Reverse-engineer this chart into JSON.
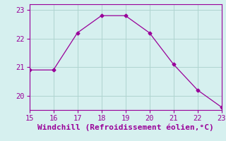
{
  "x": [
    15,
    16,
    17,
    18,
    19,
    20,
    21,
    22,
    23
  ],
  "y": [
    20.9,
    20.9,
    22.2,
    22.8,
    22.8,
    22.2,
    21.1,
    20.2,
    19.6
  ],
  "xlim": [
    15,
    23
  ],
  "ylim": [
    19.5,
    23.2
  ],
  "xticks": [
    15,
    16,
    17,
    18,
    19,
    20,
    21,
    22,
    23
  ],
  "yticks": [
    20,
    21,
    22,
    23
  ],
  "xlabel": "Windchill (Refroidissement éolien,°C)",
  "line_color": "#990099",
  "marker": "D",
  "marker_size": 2.5,
  "background_color": "#d6f0ef",
  "grid_color": "#afd4d0",
  "tick_color": "#990099",
  "label_color": "#990099",
  "font_size": 7.5,
  "xlabel_fontsize": 8
}
